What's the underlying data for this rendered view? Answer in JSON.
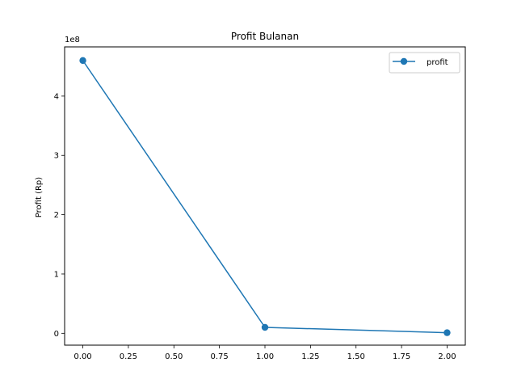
{
  "chart_data": {
    "type": "line",
    "title": "Profit Bulanan",
    "xlabel": "",
    "ylabel": "Profit (Rp)",
    "y_offset_label": "1e8",
    "y_scale": 100000000,
    "xlim": [
      -0.1,
      2.1
    ],
    "ylim": [
      -20000000,
      483000000
    ],
    "x_ticks": [
      0.0,
      0.25,
      0.5,
      0.75,
      1.0,
      1.25,
      1.5,
      1.75,
      2.0
    ],
    "x_tick_labels": [
      "0.00",
      "0.25",
      "0.50",
      "0.75",
      "1.00",
      "1.25",
      "1.50",
      "1.75",
      "2.00"
    ],
    "y_ticks": [
      0,
      100000000,
      200000000,
      300000000,
      400000000
    ],
    "y_tick_labels": [
      "0",
      "1",
      "2",
      "3",
      "4"
    ],
    "grid": false,
    "legend_position": "top-right",
    "series": [
      {
        "name": "profit",
        "color": "#1f77b4",
        "marker": "circle",
        "x": [
          0,
          1,
          2
        ],
        "y": [
          460000000,
          10000000,
          1000000
        ]
      }
    ]
  }
}
